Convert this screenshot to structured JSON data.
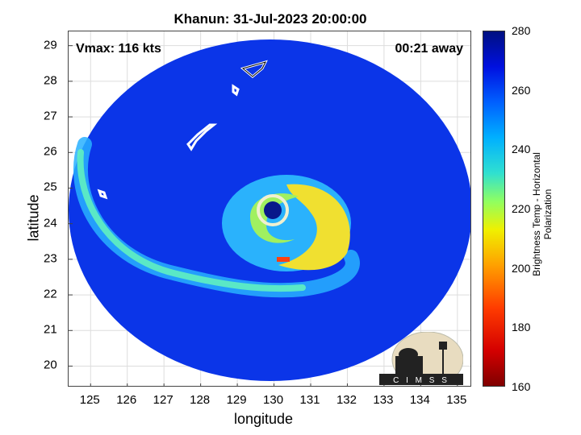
{
  "title": "Khanun: 31-Jul-2023 20:00:00",
  "vmax_label": "Vmax: 116 kts",
  "time_away_label": "00:21 away",
  "logo_text": "CIMSS",
  "colors": {
    "background": "#0b35e8",
    "eye_wall": "#f0e030",
    "eye": "#0a1a8a",
    "coast": "#ffffff"
  },
  "chart_data": {
    "type": "heatmap",
    "xlabel": "longitude",
    "ylabel": "latitude",
    "xlim": [
      124.4,
      135.4
    ],
    "ylim": [
      19.4,
      29.4
    ],
    "x_ticks": [
      "125",
      "126",
      "127",
      "128",
      "129",
      "130",
      "131",
      "132",
      "133",
      "134",
      "135"
    ],
    "y_ticks": [
      "29",
      "28",
      "27",
      "26",
      "25",
      "24",
      "23",
      "22",
      "21",
      "20"
    ],
    "grid": true,
    "colorbar": {
      "label": "Brightness Temp - Horizontal Polarization",
      "range": [
        160,
        280
      ],
      "ticks": [
        "280",
        "260",
        "240",
        "220",
        "200",
        "180",
        "160"
      ]
    },
    "storm_center": {
      "lon": 129.9,
      "lat": 24.4
    }
  }
}
